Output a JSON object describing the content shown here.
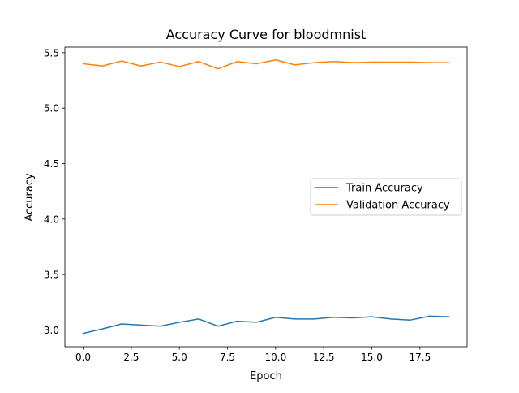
{
  "chart_data": {
    "type": "line",
    "title": "Accuracy Curve for bloodmnist",
    "xlabel": "Epoch",
    "ylabel": "Accuracy",
    "xlim": [
      -0.95,
      19.95
    ],
    "ylim": [
      2.85,
      5.55
    ],
    "xticks": [
      0.0,
      2.5,
      5.0,
      7.5,
      10.0,
      12.5,
      15.0,
      17.5
    ],
    "xtick_labels": [
      "0.0",
      "2.5",
      "5.0",
      "7.5",
      "10.0",
      "12.5",
      "15.0",
      "17.5"
    ],
    "yticks": [
      3.0,
      3.5,
      4.0,
      4.5,
      5.0,
      5.5
    ],
    "ytick_labels": [
      "3.0",
      "3.5",
      "4.0",
      "4.5",
      "5.0",
      "5.5"
    ],
    "grid": false,
    "legend_position": "center-right",
    "x": [
      0,
      1,
      2,
      3,
      4,
      5,
      6,
      7,
      8,
      9,
      10,
      11,
      12,
      13,
      14,
      15,
      16,
      17,
      18,
      19
    ],
    "series": [
      {
        "name": "Train Accuracy",
        "color": "#1f77b4",
        "values": [
          2.97,
          3.01,
          3.055,
          3.045,
          3.035,
          3.07,
          3.1,
          3.035,
          3.08,
          3.07,
          3.115,
          3.1,
          3.1,
          3.115,
          3.11,
          3.12,
          3.1,
          3.09,
          3.125,
          3.12
        ]
      },
      {
        "name": "Validation Accuracy",
        "color": "#ff7f0e",
        "values": [
          5.4,
          5.38,
          5.425,
          5.38,
          5.415,
          5.375,
          5.42,
          5.355,
          5.42,
          5.4,
          5.435,
          5.39,
          5.41,
          5.42,
          5.41,
          5.415,
          5.415,
          5.415,
          5.41,
          5.41
        ]
      }
    ]
  }
}
